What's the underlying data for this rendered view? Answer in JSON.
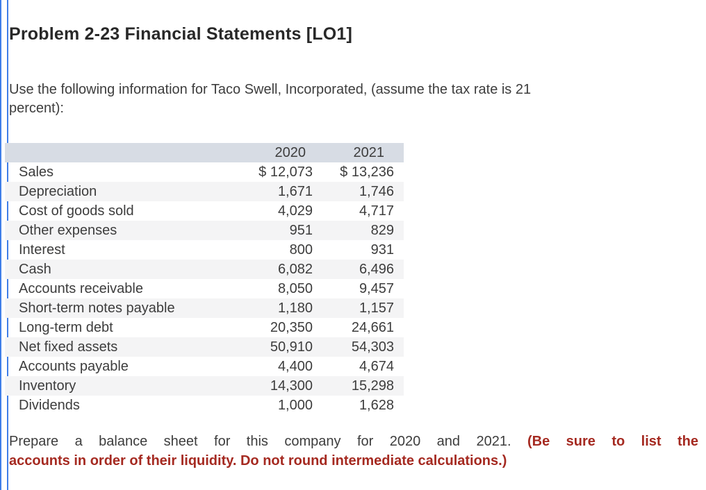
{
  "page": {
    "title": "Problem 2-23 Financial Statements [LO1]",
    "intro_line1": "Use the following information for Taco Swell, Incorporated, (assume the tax rate is 21",
    "intro_line2": "percent):",
    "instruction_black": "Prepare a balance sheet for this company for 2020 and 2021.",
    "instruction_red_line1": "(Be sure to list the",
    "instruction_red_line2": "accounts in order of their liquidity. Do not round intermediate calculations.)"
  },
  "colors": {
    "accent_blue": "#3f7ee8",
    "table_header_bg": "#d7dce4",
    "table_alt_row_bg": "#f4f4f5",
    "warning_red": "#a52a21",
    "body_text": "#3d3d3d"
  },
  "table": {
    "columns": [
      "",
      "2020",
      "2021"
    ],
    "rows": [
      {
        "label": "Sales",
        "y2020": "$ 12,073",
        "y2021": "$ 13,236"
      },
      {
        "label": "Depreciation",
        "y2020": "1,671",
        "y2021": "1,746"
      },
      {
        "label": "Cost of goods sold",
        "y2020": "4,029",
        "y2021": "4,717"
      },
      {
        "label": "Other expenses",
        "y2020": "951",
        "y2021": "829"
      },
      {
        "label": "Interest",
        "y2020": "800",
        "y2021": "931"
      },
      {
        "label": "Cash",
        "y2020": "6,082",
        "y2021": "6,496"
      },
      {
        "label": "Accounts receivable",
        "y2020": "8,050",
        "y2021": "9,457"
      },
      {
        "label": "Short-term notes payable",
        "y2020": "1,180",
        "y2021": "1,157"
      },
      {
        "label": "Long-term debt",
        "y2020": "20,350",
        "y2021": "24,661"
      },
      {
        "label": "Net fixed assets",
        "y2020": "50,910",
        "y2021": "54,303"
      },
      {
        "label": "Accounts payable",
        "y2020": "4,400",
        "y2021": "4,674"
      },
      {
        "label": "Inventory",
        "y2020": "14,300",
        "y2021": "15,298"
      },
      {
        "label": "Dividends",
        "y2020": "1,000",
        "y2021": "1,628"
      }
    ]
  }
}
